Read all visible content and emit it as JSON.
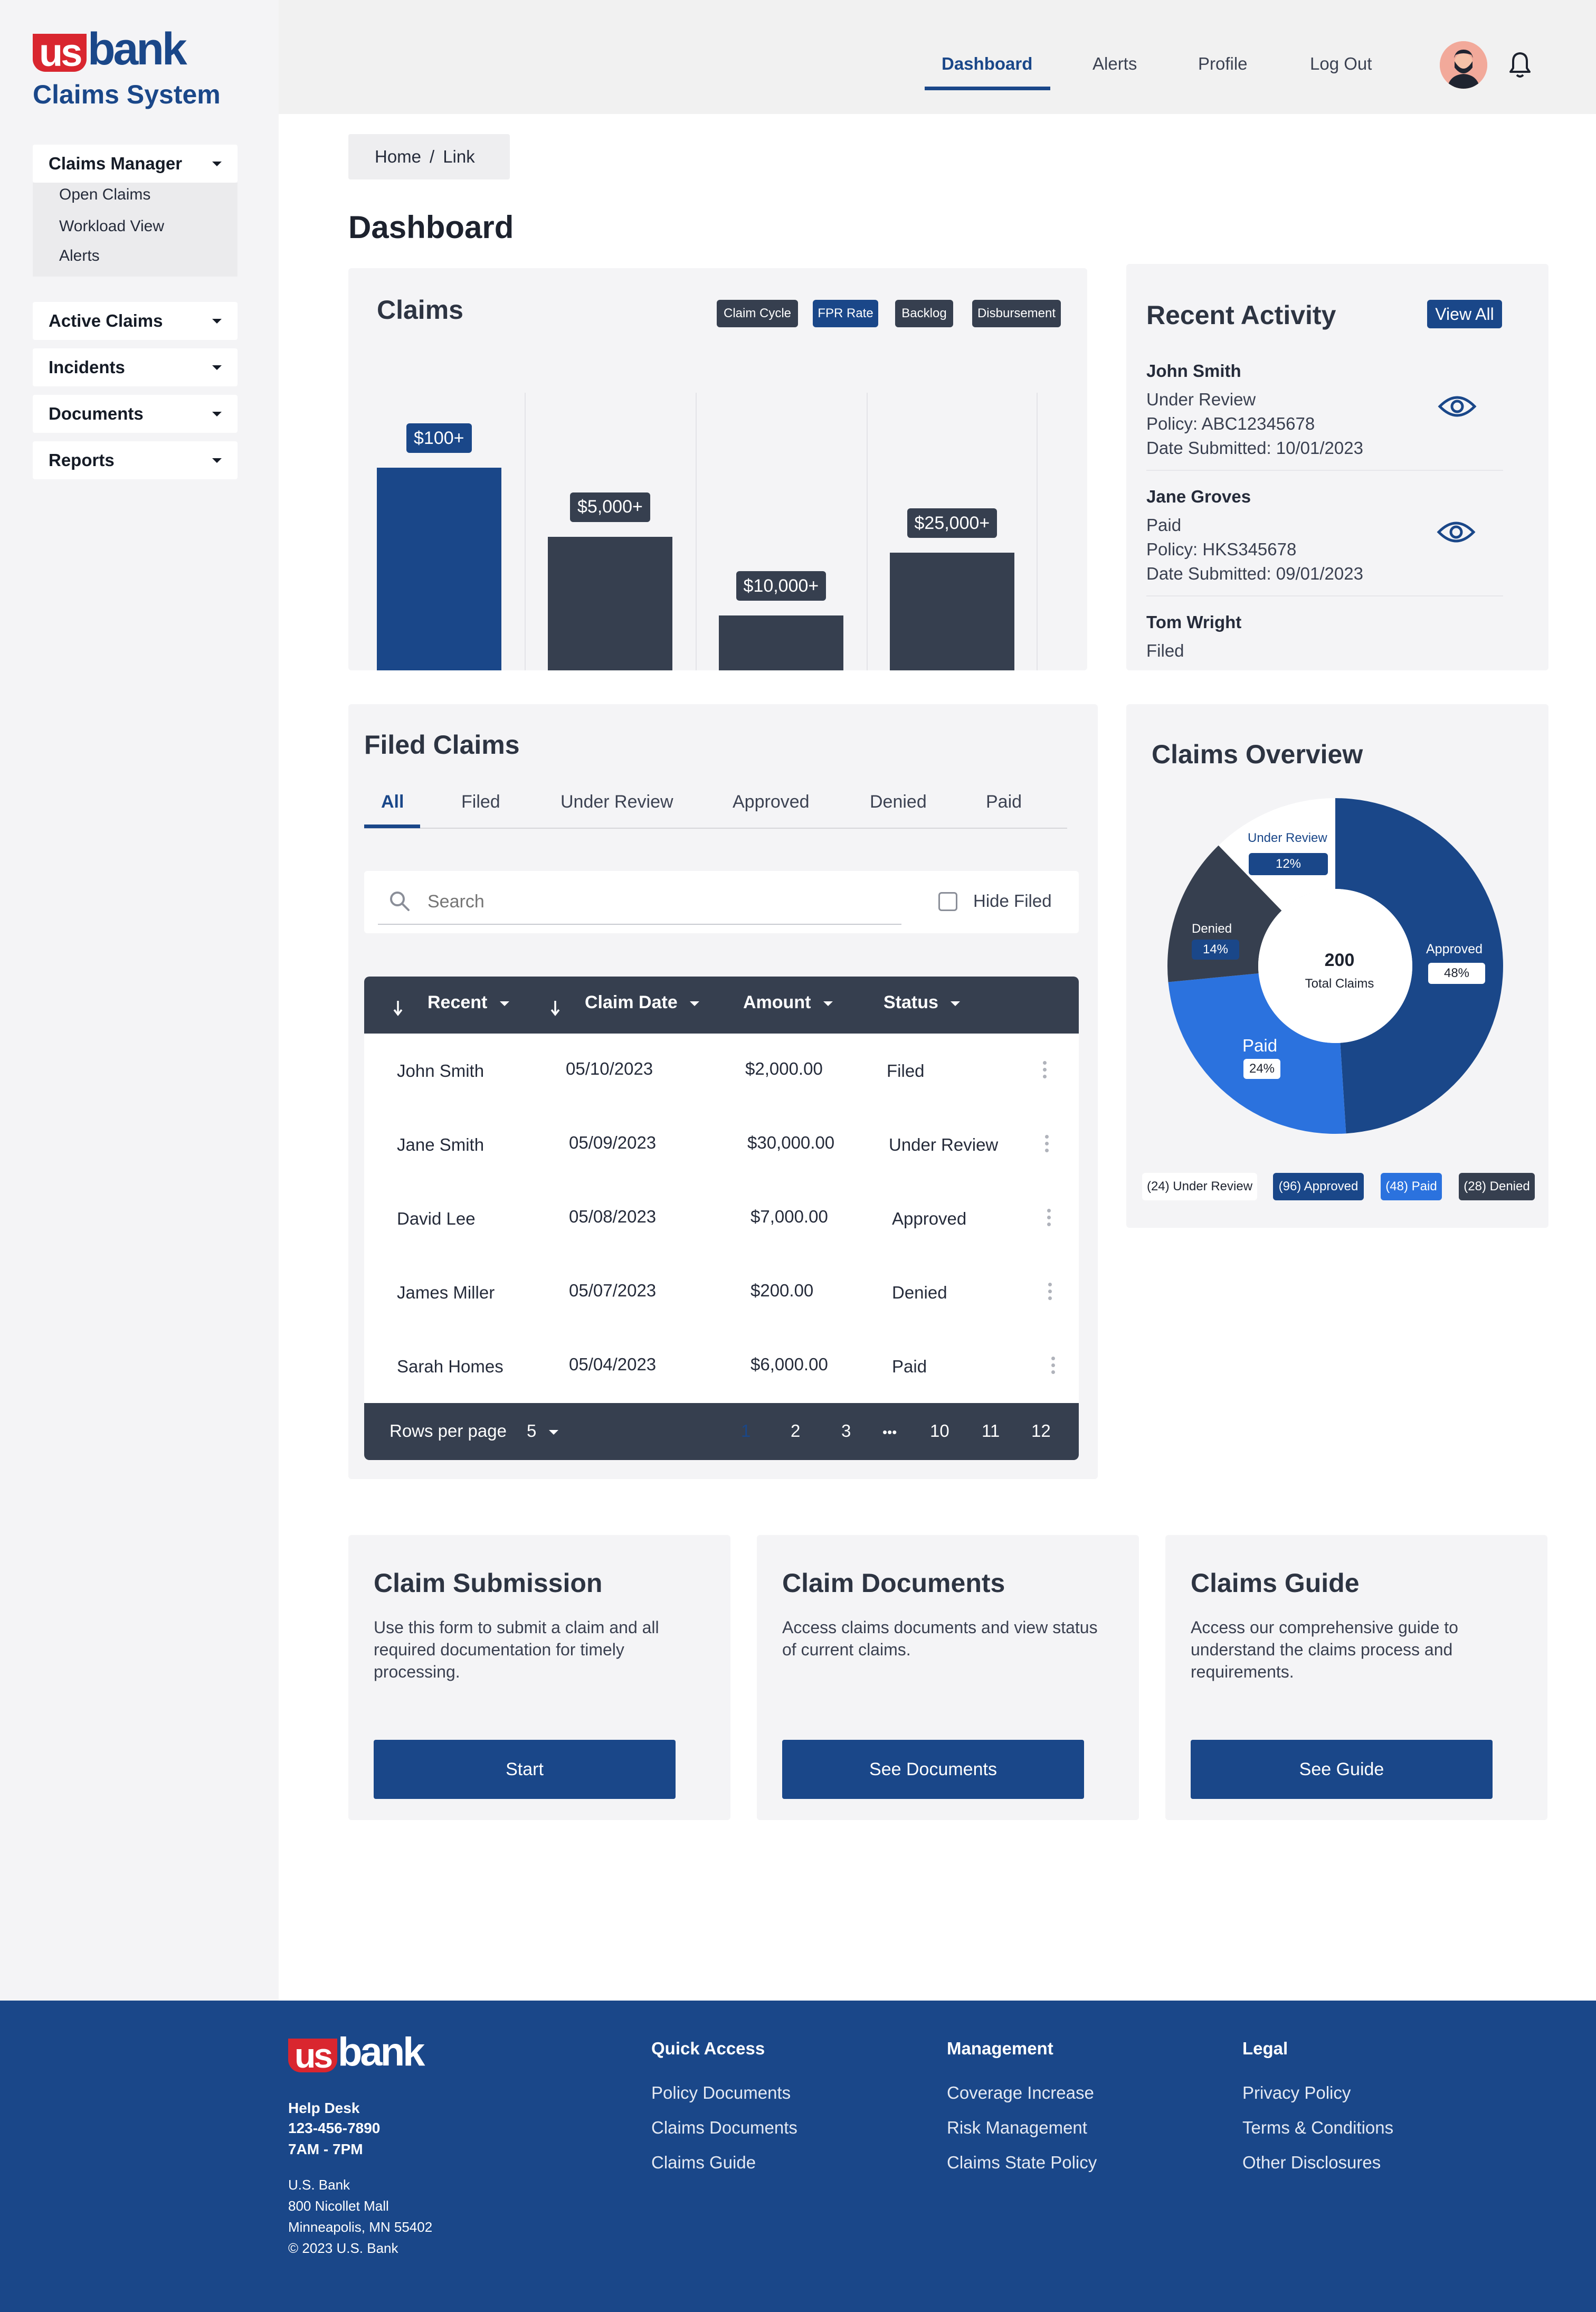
{
  "brand": {
    "logo_us": "us",
    "logo_bank": "bank",
    "system_title": "Claims System"
  },
  "sidebar": {
    "items": [
      {
        "label": "Claims Manager",
        "sub": [
          "Open Claims",
          "Workload View",
          "Alerts"
        ]
      },
      {
        "label": "Active Claims"
      },
      {
        "label": "Incidents"
      },
      {
        "label": "Documents"
      },
      {
        "label": "Reports"
      }
    ]
  },
  "nav": {
    "items": [
      "Dashboard",
      "Alerts",
      "Profile",
      "Log Out"
    ],
    "active": "Dashboard"
  },
  "breadcrumb": {
    "home": "Home",
    "sep": "/",
    "link": "Link"
  },
  "page_title": "Dashboard",
  "claims_card": {
    "title": "Claims",
    "chips": [
      "Claim Cycle",
      "FPR Rate",
      "Backlog",
      "Disbursement"
    ],
    "active_chip": "FPR Rate"
  },
  "chart_data": {
    "type": "bar",
    "title": "Claims",
    "categories": [
      "$100+",
      "$5,000+",
      "$10,000+",
      "$25,000+"
    ],
    "values": [
      100,
      66,
      27,
      58
    ],
    "data_labels": [
      "$100+",
      "$5,000+",
      "$10,000+",
      "$25,000+"
    ],
    "ylim": [
      0,
      100
    ],
    "grid": true,
    "colors": [
      "#1a4789",
      "#363f4f",
      "#363f4f",
      "#363f4f"
    ]
  },
  "recent_activity": {
    "title": "Recent Activity",
    "view_all": "View All",
    "items": [
      {
        "name": "John Smith",
        "status": "Under Review",
        "policy": "Policy: ABC12345678",
        "date": "Date Submitted: 10/01/2023"
      },
      {
        "name": "Jane Groves",
        "status": "Paid",
        "policy": "Policy: HKS345678",
        "date": "Date Submitted: 09/01/2023"
      },
      {
        "name": "Tom Wright",
        "status": "Filed"
      }
    ]
  },
  "filed_claims": {
    "title": "Filed Claims",
    "tabs": [
      "All",
      "Filed",
      "Under Review",
      "Approved",
      "Denied",
      "Paid"
    ],
    "active_tab": "All",
    "search_placeholder": "Search",
    "hide_filed": "Hide Filed",
    "columns": [
      "Recent",
      "Claim Date",
      "Amount",
      "Status"
    ],
    "rows": [
      {
        "name": "John Smith",
        "date": "05/10/2023",
        "amount": "$2,000.00",
        "status": "Filed"
      },
      {
        "name": "Jane Smith",
        "date": "05/09/2023",
        "amount": "$30,000.00",
        "status": "Under Review"
      },
      {
        "name": "David Lee",
        "date": "05/08/2023",
        "amount": "$7,000.00",
        "status": "Approved"
      },
      {
        "name": "James Miller",
        "date": "05/07/2023",
        "amount": "$200.00",
        "status": "Denied"
      },
      {
        "name": "Sarah Homes",
        "date": "05/04/2023",
        "amount": "$6,000.00",
        "status": "Paid"
      }
    ],
    "rows_per_page_label": "Rows per page",
    "rows_per_page": "5",
    "pages": [
      "1",
      "2",
      "3",
      "•••",
      "10",
      "11",
      "12"
    ]
  },
  "overview": {
    "title": "Claims Overview",
    "total": "200",
    "total_label": "Total Claims",
    "segments": [
      {
        "name": "Approved",
        "pct": 48,
        "label": "48%",
        "color": "#1a4789"
      },
      {
        "name": "Paid",
        "pct": 24,
        "label": "24%",
        "color": "#2b72de"
      },
      {
        "name": "Denied",
        "pct": 14,
        "label": "14%",
        "color": "#363f4f"
      },
      {
        "name": "Under Review",
        "pct": 12,
        "label": "12%",
        "color": "#ffffff"
      }
    ],
    "legend": [
      "(24) Under Review",
      "(96) Approved",
      "(48) Paid",
      "(28) Denied"
    ]
  },
  "info_cards": [
    {
      "title": "Claim Submission",
      "desc": "Use this form to submit a claim and all required documentation for timely processing.",
      "button": "Start"
    },
    {
      "title": "Claim Documents",
      "desc": "Access claims documents and view status of current claims.",
      "button": "See Documents"
    },
    {
      "title": "Claims Guide",
      "desc": "Access our comprehensive guide to understand the claims process and requirements.",
      "button": "See Guide"
    }
  ],
  "footer": {
    "help_desk": "Help Desk",
    "phone": "123-456-7890",
    "hours": "7AM - 7PM",
    "address": [
      "U.S. Bank",
      "800 Nicollet Mall",
      "Minneapolis, MN 55402",
      "© 2023 U.S. Bank"
    ],
    "columns": [
      {
        "title": "Quick Access",
        "links": [
          "Policy Documents",
          "Claims Documents",
          "Claims Guide"
        ]
      },
      {
        "title": "Management",
        "links": [
          "Coverage Increase",
          "Risk Management",
          "Claims State Policy"
        ]
      },
      {
        "title": "Legal",
        "links": [
          "Privacy Policy",
          "Terms & Conditions",
          "Other Disclosures"
        ]
      }
    ]
  },
  "icons": {
    "search": "search-icon",
    "eye": "eye-icon",
    "bell": "bell-icon",
    "caret": "caret-down-icon",
    "sort": "sort-arrow-icon",
    "kebab": "kebab-menu-icon"
  }
}
